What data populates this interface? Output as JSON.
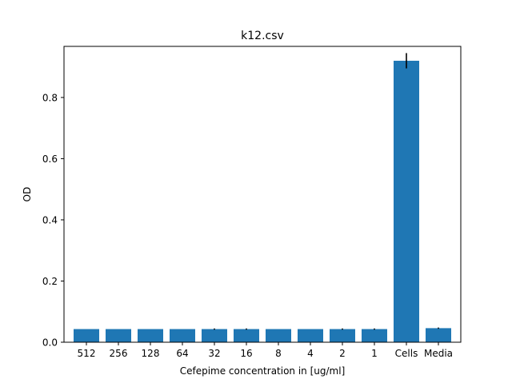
{
  "chart_data": {
    "type": "bar",
    "title": "k12.csv",
    "xlabel": "Cefepime concentration in [ug/ml]",
    "ylabel": "OD",
    "categories": [
      "512",
      "256",
      "128",
      "64",
      "32",
      "16",
      "8",
      "4",
      "2",
      "1",
      "Cells",
      "Media"
    ],
    "values": [
      0.043,
      0.043,
      0.043,
      0.043,
      0.043,
      0.043,
      0.043,
      0.043,
      0.043,
      0.043,
      0.92,
      0.046
    ],
    "errors": [
      0.0,
      0.0,
      0.0,
      0.0,
      0.002,
      0.002,
      0.0,
      0.0,
      0.002,
      0.002,
      0.025,
      0.002
    ],
    "ylim": [
      0,
      0.967
    ],
    "yticks": [
      0.0,
      0.2,
      0.4,
      0.6,
      0.8
    ],
    "ytick_labels": [
      "0.0",
      "0.2",
      "0.4",
      "0.6",
      "0.8"
    ],
    "grid": false,
    "bar_color": "#1f77b4",
    "error_color": "#000000"
  }
}
